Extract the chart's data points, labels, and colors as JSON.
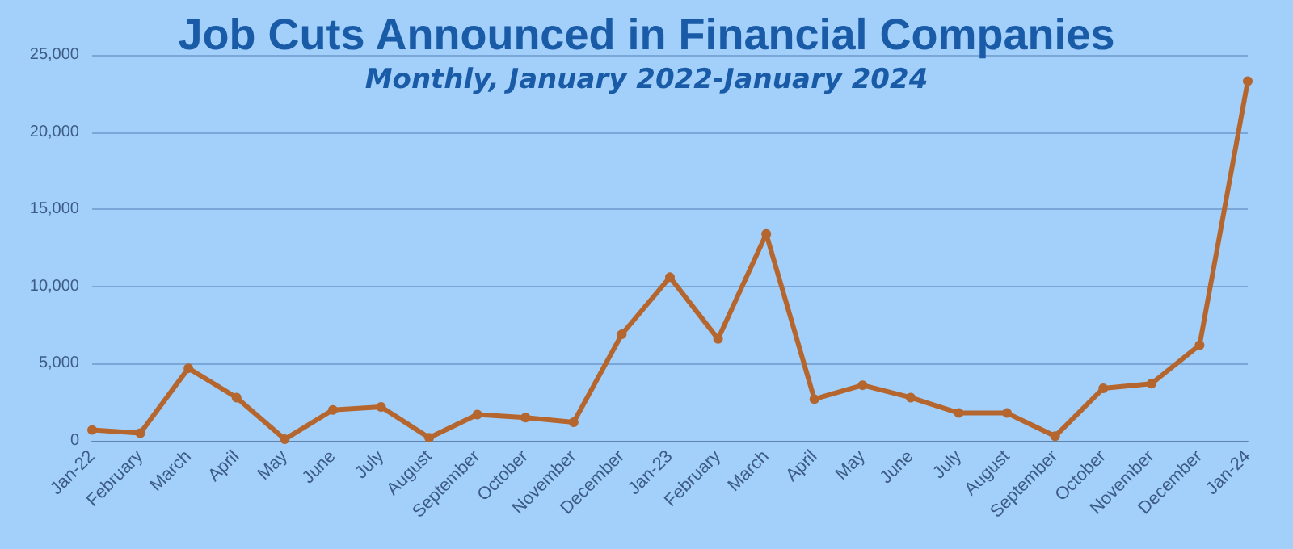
{
  "chart_data": {
    "type": "line",
    "title": "Job Cuts Announced in Financial Companies",
    "subtitle": "Monthly, January 2022-January 2024",
    "categories": [
      "Jan-22",
      "February",
      "March",
      "April",
      "May",
      "June",
      "July",
      "August",
      "September",
      "October",
      "November",
      "December",
      "Jan-23",
      "February",
      "March",
      "April",
      "May",
      "June",
      "July",
      "August",
      "September",
      "October",
      "November",
      "December",
      "Jan-24"
    ],
    "series": [
      {
        "color": "#b5662e",
        "values": [
          700,
          500,
          4700,
          2800,
          100,
          2000,
          2200,
          200,
          1700,
          1500,
          1200,
          6900,
          10600,
          6600,
          13400,
          2700,
          3600,
          2800,
          1800,
          1800,
          300,
          3400,
          3700,
          6200,
          23300
        ]
      }
    ],
    "ylim": [
      0,
      25000
    ],
    "yticks": [
      {
        "value": 0,
        "label": "0"
      },
      {
        "value": 5000,
        "label": "5,000"
      },
      {
        "value": 10000,
        "label": "10,000"
      },
      {
        "value": 15000,
        "label": "15,000"
      },
      {
        "value": 20000,
        "label": "20,000"
      },
      {
        "value": 25000,
        "label": "25,000"
      }
    ],
    "grid": "y",
    "marker": "circle",
    "line_style": "solid"
  }
}
